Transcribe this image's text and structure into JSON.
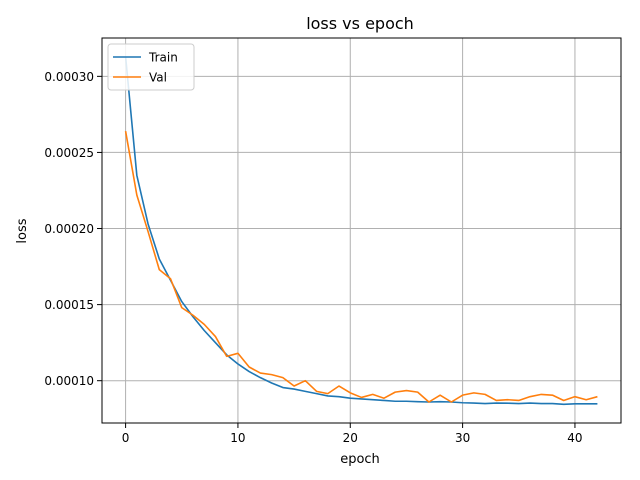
{
  "chart_data": {
    "type": "line",
    "title": "loss vs epoch",
    "xlabel": "epoch",
    "ylabel": "loss",
    "xlim": [
      -2.1,
      44.1
    ],
    "ylim": [
      7.22e-05,
      0.0003252
    ],
    "xticks": [
      0,
      10,
      20,
      30,
      40
    ],
    "xtick_labels": [
      "0",
      "10",
      "20",
      "30",
      "40"
    ],
    "yticks": [
      0.0001,
      0.00015,
      0.0002,
      0.00025,
      0.0003
    ],
    "ytick_labels": [
      "0.00010",
      "0.00015",
      "0.00020",
      "0.00025",
      "0.00030"
    ],
    "grid": true,
    "legend_position": "top-left",
    "x": [
      0,
      1,
      2,
      3,
      4,
      5,
      6,
      7,
      8,
      9,
      10,
      11,
      12,
      13,
      14,
      15,
      16,
      17,
      18,
      19,
      20,
      21,
      22,
      23,
      24,
      25,
      26,
      27,
      28,
      29,
      30,
      31,
      32,
      33,
      34,
      35,
      36,
      37,
      38,
      39,
      40,
      41,
      42
    ],
    "series": [
      {
        "name": "Train",
        "color": "#1f77b4",
        "values": [
          0.000313,
          0.000235,
          0.000203,
          0.00018,
          0.000166,
          0.000152,
          0.000142,
          0.000133,
          0.000125,
          0.000117,
          0.000111,
          0.000106,
          0.000102,
          9.85e-05,
          9.55e-05,
          9.45e-05,
          9.3e-05,
          9.15e-05,
          9e-05,
          8.95e-05,
          8.85e-05,
          8.8e-05,
          8.75e-05,
          8.7e-05,
          8.65e-05,
          8.65e-05,
          8.62e-05,
          8.6e-05,
          8.62e-05,
          8.6e-05,
          8.55e-05,
          8.53e-05,
          8.5e-05,
          8.53e-05,
          8.52e-05,
          8.5e-05,
          8.53e-05,
          8.5e-05,
          8.5e-05,
          8.45e-05,
          8.48e-05,
          8.48e-05,
          8.48e-05
        ]
      },
      {
        "name": "Val",
        "color": "#ff7f0e",
        "values": [
          0.000264,
          0.000222,
          0.000198,
          0.000173,
          0.000167,
          0.000148,
          0.000143,
          0.000137,
          0.000129,
          0.000116,
          0.000118,
          0.000109,
          0.000105,
          0.000104,
          0.000102,
          9.65e-05,
          0.0001,
          9.3e-05,
          9.15e-05,
          9.65e-05,
          9.2e-05,
          8.9e-05,
          9.1e-05,
          8.85e-05,
          9.25e-05,
          9.35e-05,
          9.25e-05,
          8.6e-05,
          9.05e-05,
          8.6e-05,
          9.05e-05,
          9.2e-05,
          9.1e-05,
          8.7e-05,
          8.75e-05,
          8.7e-05,
          8.95e-05,
          9.1e-05,
          9.05e-05,
          8.7e-05,
          8.95e-05,
          8.75e-05,
          8.95e-05
        ]
      }
    ]
  }
}
